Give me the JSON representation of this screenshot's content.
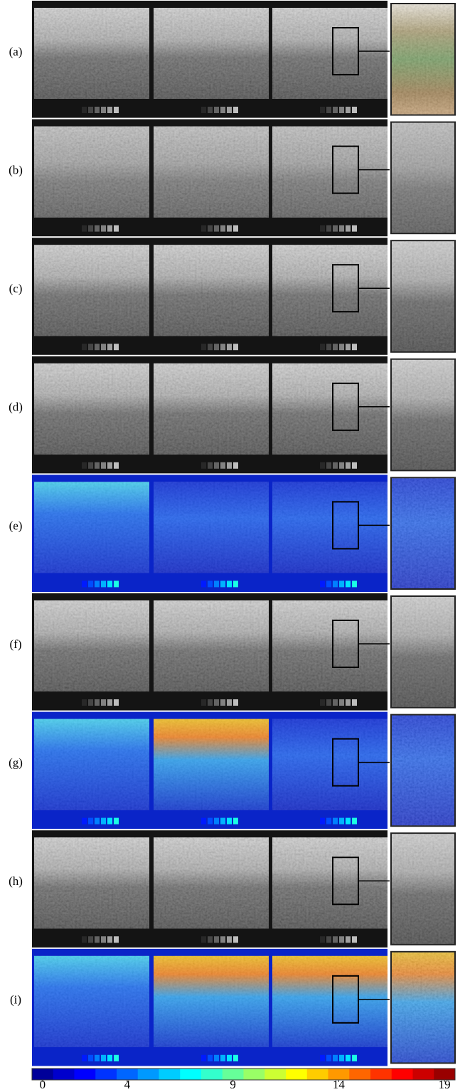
{
  "rows": [
    {
      "label": "(a)"
    },
    {
      "label": "(b)"
    },
    {
      "label": "(c)"
    },
    {
      "label": "(d)"
    },
    {
      "label": "(e)"
    },
    {
      "label": "(f)"
    },
    {
      "label": "(g)"
    },
    {
      "label": "(h)"
    },
    {
      "label": "(i)"
    }
  ],
  "colorbar": {
    "range": [
      0,
      19
    ],
    "ticks": [
      0,
      4,
      9,
      14,
      19
    ]
  }
}
